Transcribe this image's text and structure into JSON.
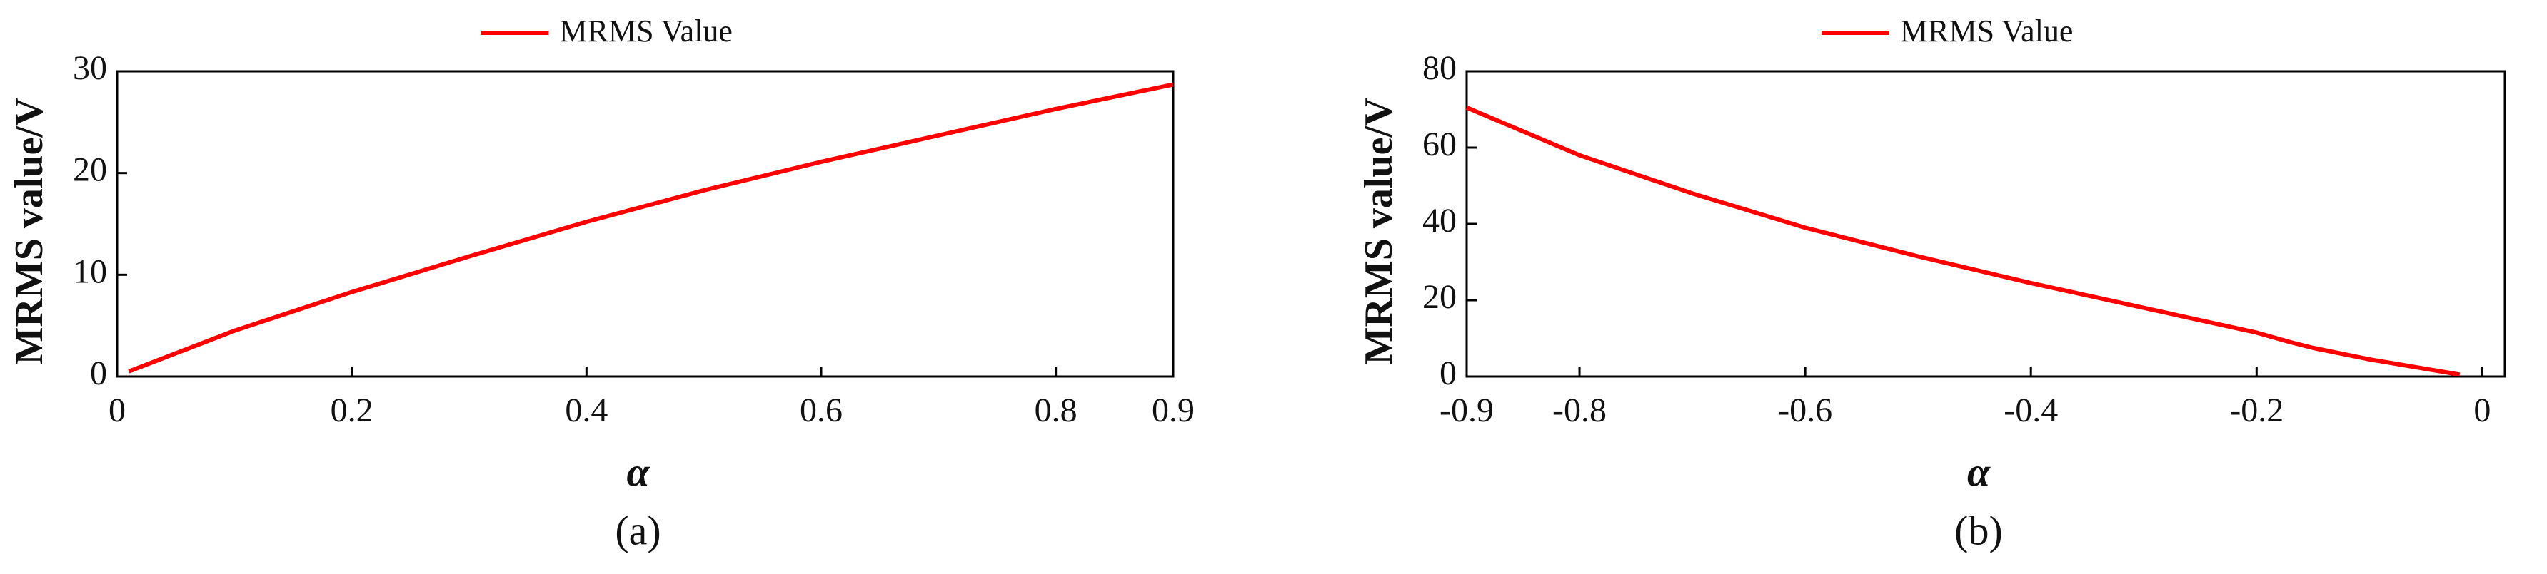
{
  "chart_data": [
    {
      "type": "line",
      "panel_label": "(a)",
      "x_label": "α",
      "y_label": "MRMS value/V",
      "x": [
        0.01,
        0.1,
        0.2,
        0.3,
        0.4,
        0.5,
        0.6,
        0.7,
        0.8,
        0.9
      ],
      "series": [
        {
          "name": "MRMS Value",
          "color": "#ff0000",
          "values": [
            0.5,
            4.5,
            8.3,
            11.8,
            15.2,
            18.3,
            21.1,
            23.7,
            26.3,
            28.7
          ]
        }
      ],
      "xlim": [
        0,
        0.9
      ],
      "xticks": [
        0,
        0.2,
        0.4,
        0.6,
        0.8,
        0.9
      ],
      "ylim": [
        0,
        30
      ],
      "yticks": [
        0,
        10,
        20,
        30
      ]
    },
    {
      "type": "line",
      "panel_label": "(b)",
      "x_label": "α",
      "y_label": "MRMS value/V",
      "x": [
        -0.9,
        -0.8,
        -0.7,
        -0.6,
        -0.5,
        -0.4,
        -0.3,
        -0.2,
        -0.17,
        -0.15,
        -0.1,
        -0.02
      ],
      "series": [
        {
          "name": "MRMS Value",
          "color": "#ff0000",
          "values": [
            70.5,
            58,
            48,
            39,
            31.5,
            24.5,
            18,
            11.5,
            9,
            7.5,
            4.5,
            0.5
          ]
        }
      ],
      "xlim": [
        -0.9,
        0.02
      ],
      "xticks": [
        -0.9,
        -0.8,
        -0.6,
        -0.4,
        -0.2,
        0
      ],
      "ylim": [
        0,
        80
      ],
      "yticks": [
        0,
        20,
        40,
        60,
        80
      ]
    }
  ]
}
